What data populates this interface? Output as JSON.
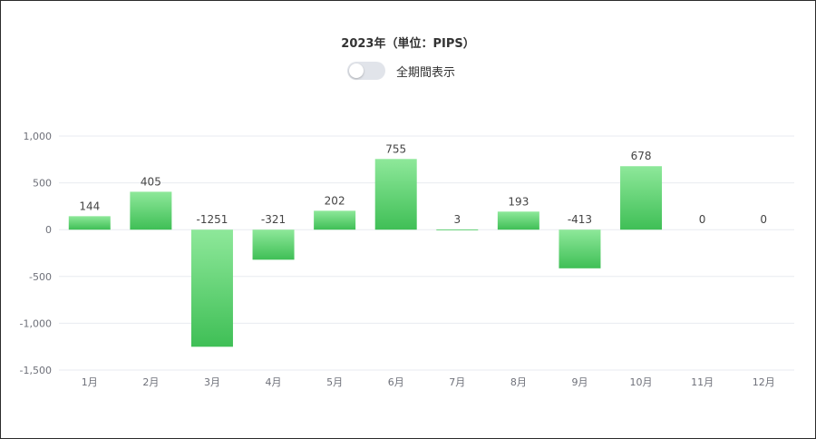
{
  "header": {
    "title": "2023年（単位：PIPS）",
    "toggle_label": "全期間表示",
    "toggle_on": false
  },
  "colors": {
    "bar_top": "#8ee89a",
    "bar_bottom": "#3fbf56",
    "grid": "#e8ebf0",
    "axis_text": "#6e7079",
    "label_text": "#444444"
  },
  "chart_data": {
    "type": "bar",
    "title": "2023年（単位：PIPS）",
    "categories": [
      "1月",
      "2月",
      "3月",
      "4月",
      "5月",
      "6月",
      "7月",
      "8月",
      "9月",
      "10月",
      "11月",
      "12月"
    ],
    "values": [
      144,
      405,
      -1251,
      -321,
      202,
      755,
      3,
      193,
      -413,
      678,
      0,
      0
    ],
    "ylim": [
      -1500,
      1000
    ],
    "yticks": [
      1000,
      500,
      0,
      -500,
      -1000,
      -1500
    ],
    "ytick_labels": [
      "1,000",
      "500",
      "0",
      "-500",
      "-1,000",
      "-1,500"
    ],
    "grid": true,
    "xlabel": "",
    "ylabel": ""
  }
}
